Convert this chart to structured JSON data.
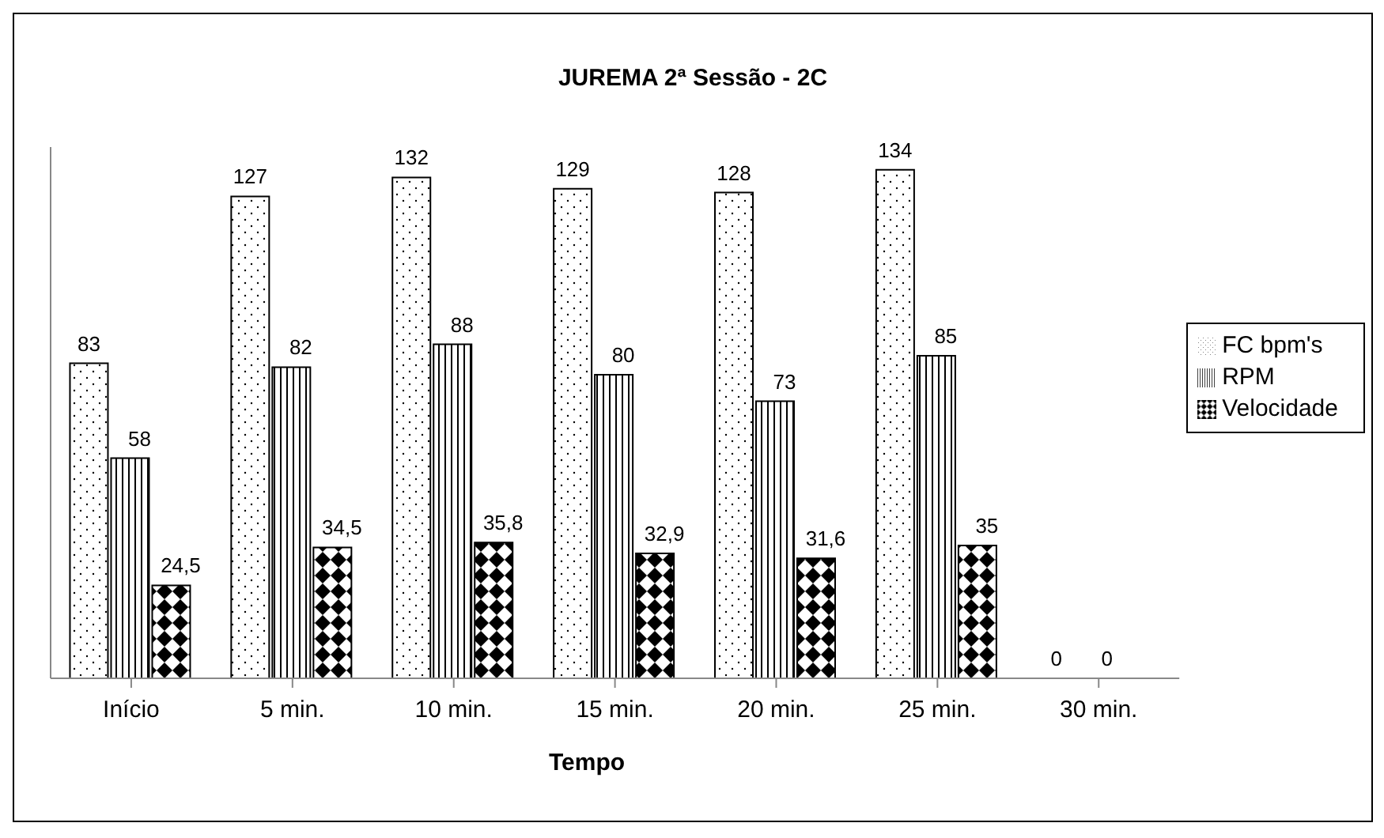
{
  "chart_data": {
    "type": "bar",
    "title": "JUREMA 2ª Sessão - 2C",
    "xlabel": "Tempo",
    "categories": [
      "Início",
      "5 min.",
      "10 min.",
      "15 min.",
      "20 min.",
      "25 min.",
      "30 min."
    ],
    "series": [
      {
        "name": "FC bpm's",
        "color": "#000000",
        "values": [
          83,
          127,
          132,
          129,
          128,
          134,
          0
        ],
        "value_labels": [
          "83",
          "127",
          "132",
          "129",
          "128",
          "134",
          "0"
        ]
      },
      {
        "name": "RPM",
        "color": "#000000",
        "values": [
          58,
          82,
          88,
          80,
          73,
          85,
          0
        ],
        "value_labels": [
          "58",
          "82",
          "88",
          "80",
          "73",
          "85",
          "0"
        ]
      },
      {
        "name": "Velocidade",
        "color": "#000000",
        "values": [
          24.5,
          34.5,
          35.8,
          32.9,
          31.6,
          35,
          null
        ],
        "value_labels": [
          "24,5",
          "34,5",
          "35,8",
          "32,9",
          "31,6",
          "35",
          null
        ]
      }
    ],
    "tick_labels": "x",
    "legend": "right"
  }
}
